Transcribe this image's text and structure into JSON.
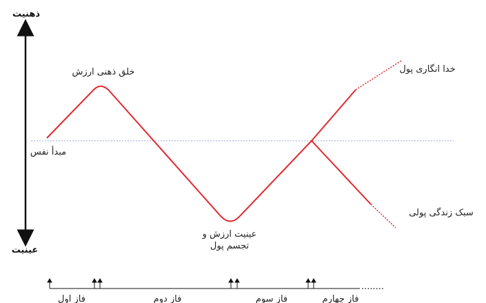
{
  "axis": {
    "top_label": "ذهنیت",
    "bottom_label": "عینیت"
  },
  "labels": {
    "peak": "خلق ذهنی ارزش",
    "origin": "مبدأ نفس",
    "trough_line1": "عینیت ارزش و",
    "trough_line2": "تجسم پول",
    "up_branch": "خدا انگاری پول",
    "down_branch": "سبک زندگی پولی"
  },
  "phases": [
    "فاز اول",
    "فاز دوم",
    "فاز سوم",
    "فاز چهارم"
  ],
  "timeline_continuation": "........",
  "colors": {
    "curve": "#e0262b",
    "baseline": "#9aa3cf",
    "axis": "#111111"
  }
}
